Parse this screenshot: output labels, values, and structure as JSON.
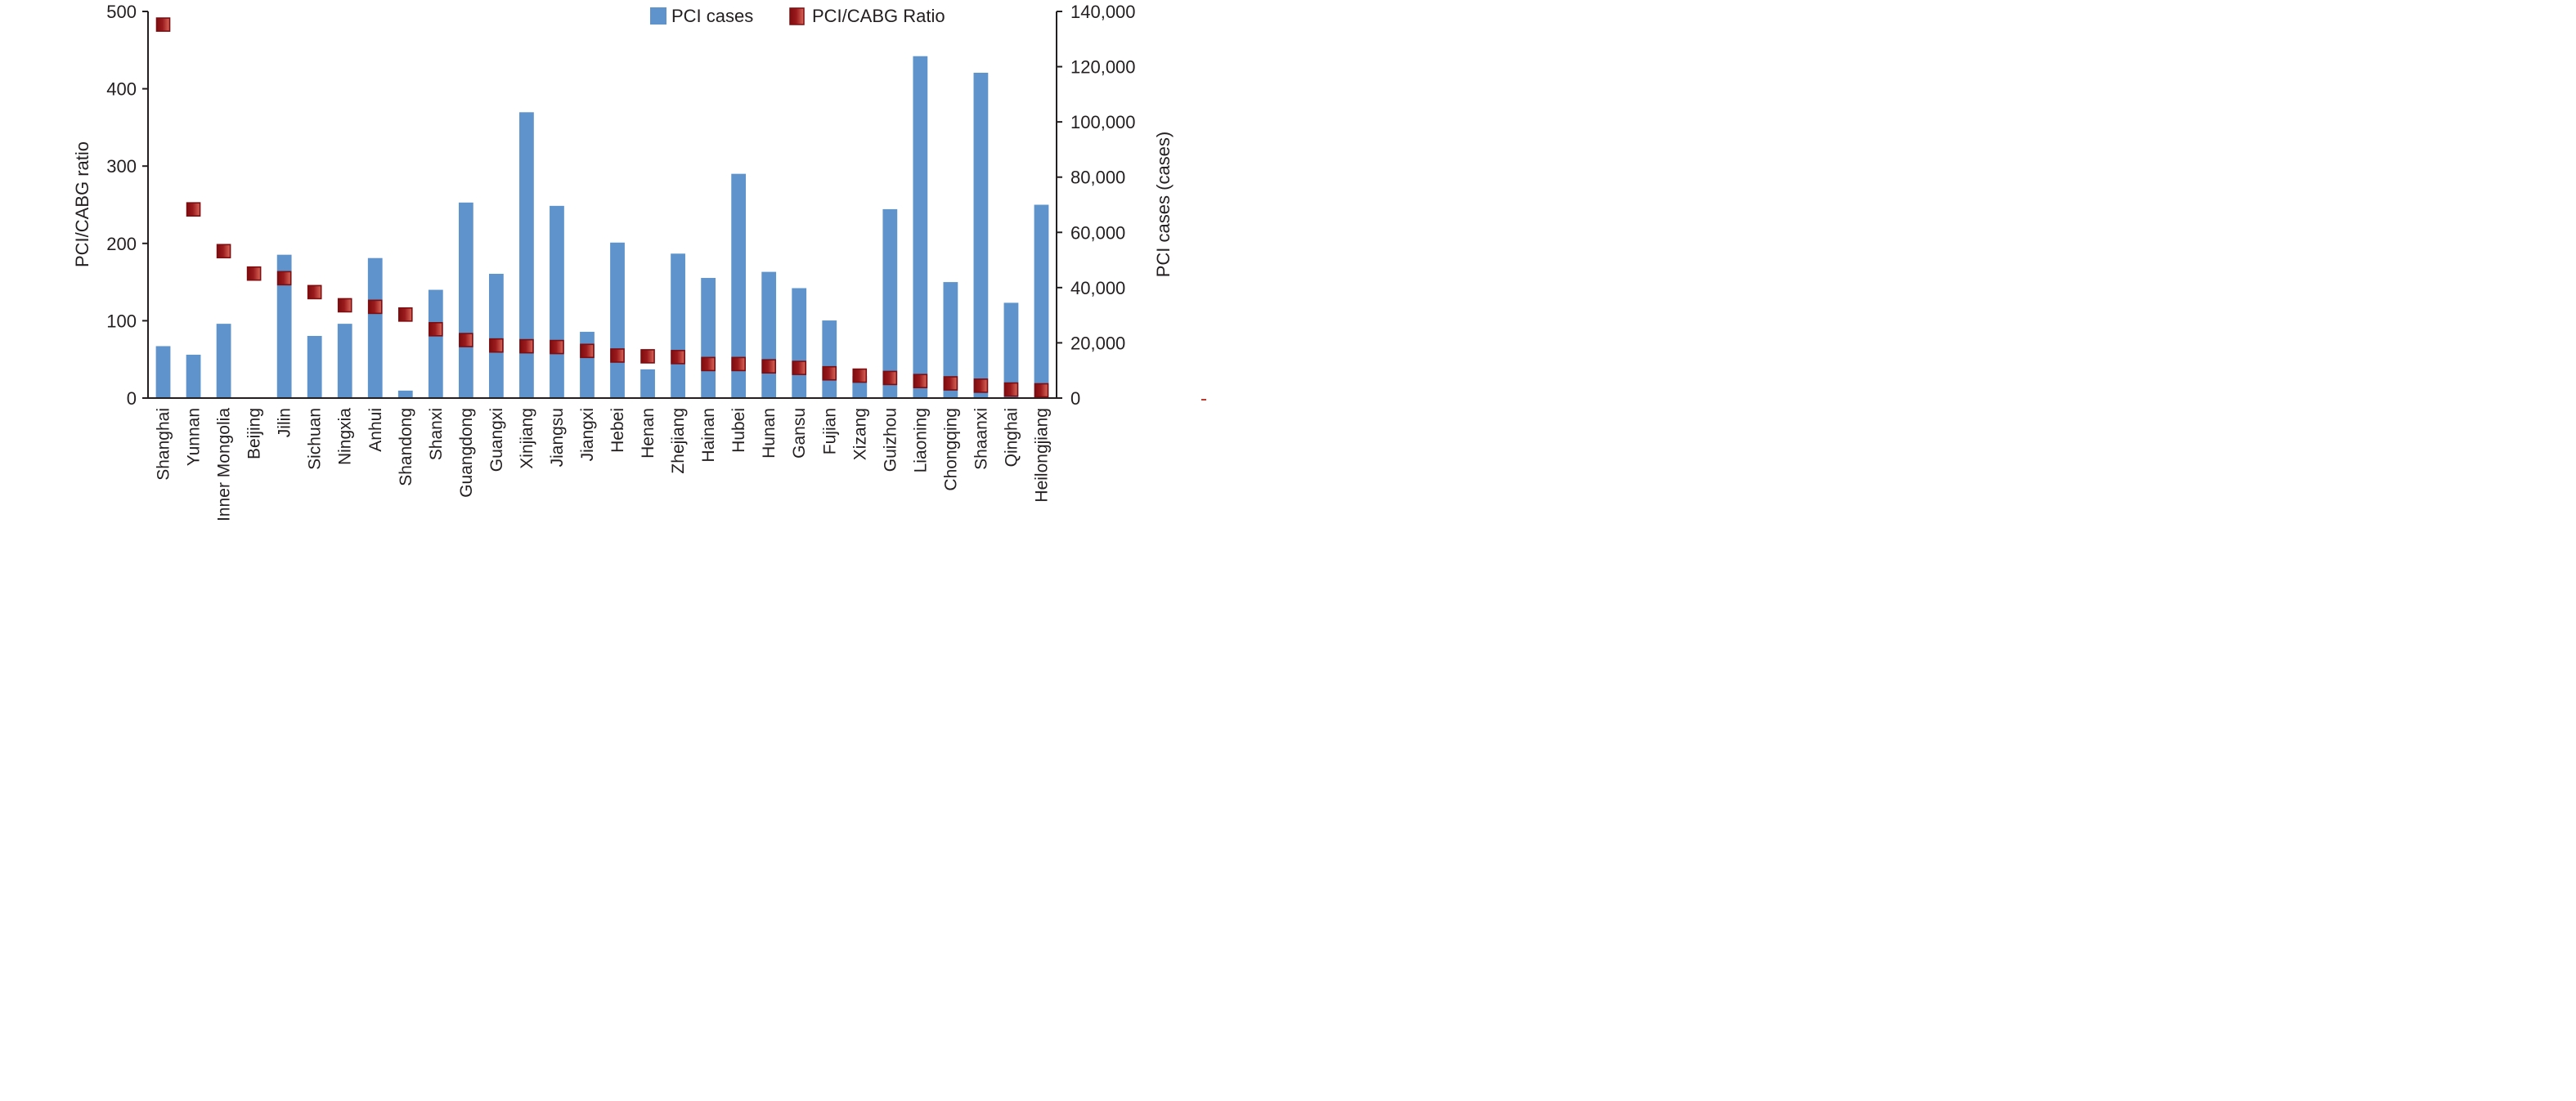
{
  "chart_data": {
    "type": "bar",
    "title": "",
    "xlabel": "",
    "ylabel_left": "PCI/CABG ratio",
    "ylabel_right": "PCI cases (cases)",
    "ylim_left": [
      0,
      500
    ],
    "ylim_right": [
      0,
      140000
    ],
    "yticks_left": [
      "0",
      "100",
      "200",
      "300",
      "400",
      "500"
    ],
    "yticks_right": [
      "0",
      "20,000",
      "40,000",
      "60,000",
      "80,000",
      "100,000",
      "120,000",
      "140,000"
    ],
    "grid": false,
    "legend_position": "top-right",
    "categories": [
      "Shanghai",
      "Yunnan",
      "Inner Mongolia",
      "Beijing",
      "Jilin",
      "Sichuan",
      "Ningxia",
      "Anhui",
      "Shandong",
      "Shanxi",
      "Guangdong",
      "Guangxi",
      "Xinjiang",
      "Jiangsu",
      "Jiangxi",
      "Hebei",
      "Henan",
      "Zhejiang",
      "Hainan",
      "Hubei",
      "Hunan",
      "Gansu",
      "Fujian",
      "Xizang",
      "Guizhou",
      "Liaoning",
      "Chongqing",
      "Shaanxi",
      "Qinghai",
      "Heilongjiang"
    ],
    "series": [
      {
        "name": "PCI cases",
        "type": "bar",
        "axis": "right",
        "color": "#5f93cb",
        "values": [
          18800,
          15700,
          26900,
          300,
          51900,
          22500,
          26900,
          50700,
          2700,
          39200,
          70800,
          45000,
          103500,
          69600,
          24000,
          56300,
          10400,
          52300,
          43500,
          81200,
          45700,
          39800,
          28100,
          8000,
          68400,
          123800,
          42000,
          117800,
          34500,
          70000
        ]
      },
      {
        "name": "PCI/CABG Ratio",
        "type": "scatter",
        "axis": "left",
        "color": "#8b1a1a",
        "values": [
          483,
          244,
          190,
          161,
          155,
          137,
          120,
          118,
          108,
          89,
          75,
          68,
          67,
          66,
          61,
          55,
          54,
          53,
          44,
          44,
          41,
          39,
          32,
          29,
          26,
          22,
          19,
          16,
          11,
          10
        ]
      }
    ]
  }
}
